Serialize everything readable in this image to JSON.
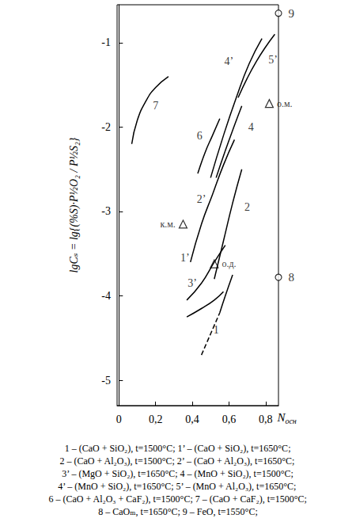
{
  "chart_data": {
    "type": "line",
    "xlabel": "Nосн",
    "ylabel": "lgCₛ = lg{(%S)·P½O₂ / P½S₂}",
    "xlim": [
      -0.01,
      0.87
    ],
    "ylim": [
      -5.3,
      -0.55
    ],
    "xticks": [
      0,
      {
        "value": 0.2,
        "label": "0,2"
      },
      {
        "value": 0.4,
        "label": "0,4"
      },
      {
        "value": 0.6,
        "label": "0,6"
      },
      {
        "value": 0.8,
        "label": "0,8"
      }
    ],
    "yticks": [
      -5,
      -4,
      -3,
      -2,
      -1
    ],
    "grid": false,
    "color": "#000000",
    "series": [
      {
        "line_style": "solid",
        "values": [
          [
            0.07,
            -2.2
          ],
          [
            0.1,
            -1.92
          ],
          [
            0.15,
            -1.68
          ],
          [
            0.2,
            -1.53
          ],
          [
            0.27,
            -1.4
          ]
        ]
      },
      {
        "line_style": "solid",
        "values": [
          [
            0.43,
            -2.55
          ],
          [
            0.47,
            -2.3
          ],
          [
            0.51,
            -2.1
          ],
          [
            0.55,
            -1.9
          ]
        ]
      },
      {
        "line_style": "solid",
        "values": [
          [
            0.5,
            -2.6
          ],
          [
            0.57,
            -2.1
          ],
          [
            0.64,
            -1.65
          ],
          [
            0.71,
            -1.25
          ],
          [
            0.78,
            -0.95
          ]
        ]
      },
      {
        "line_style": "solid",
        "values": [
          [
            0.53,
            -2.6
          ],
          [
            0.58,
            -2.28
          ],
          [
            0.63,
            -1.98
          ],
          [
            0.67,
            -1.75
          ]
        ]
      },
      {
        "line_style": "solid",
        "values": [
          [
            0.65,
            -1.65
          ],
          [
            0.7,
            -1.42
          ],
          [
            0.75,
            -1.22
          ],
          [
            0.8,
            -1.05
          ],
          [
            0.85,
            -0.9
          ]
        ]
      },
      {
        "line_style": "solid",
        "values": [
          [
            0.39,
            -3.6
          ],
          [
            0.45,
            -3.15
          ],
          [
            0.51,
            -2.8
          ],
          [
            0.57,
            -2.45
          ],
          [
            0.63,
            -2.15
          ]
        ]
      },
      {
        "line_style": "solid",
        "values": [
          [
            0.52,
            -3.8
          ],
          [
            0.57,
            -3.35
          ],
          [
            0.62,
            -2.9
          ],
          [
            0.67,
            -2.5
          ]
        ]
      },
      {
        "line_style": "solid",
        "values": [
          [
            0.37,
            -4.05
          ],
          [
            0.45,
            -3.85
          ],
          [
            0.52,
            -3.6
          ],
          [
            0.58,
            -3.4
          ]
        ]
      },
      {
        "line_style": "solid",
        "values": [
          [
            0.37,
            -4.25
          ],
          [
            0.45,
            -4.15
          ],
          [
            0.52,
            -4.05
          ],
          [
            0.57,
            -3.95
          ]
        ]
      },
      {
        "line_style": "dashed",
        "values": [
          [
            0.45,
            -4.7
          ],
          [
            0.5,
            -4.45
          ],
          [
            0.55,
            -4.2
          ]
        ]
      },
      {
        "line_style": "solid",
        "values": [
          [
            0.55,
            -4.2
          ],
          [
            0.58,
            -4.0
          ],
          [
            0.62,
            -3.75
          ]
        ]
      }
    ],
    "annotations": [
      {
        "text": "7",
        "x": 0.2,
        "y": -1.75
      },
      {
        "text": "6",
        "x": 0.44,
        "y": -2.1
      },
      {
        "text": "4’",
        "x": 0.6,
        "y": -1.22
      },
      {
        "text": "4",
        "x": 0.72,
        "y": -2.0
      },
      {
        "text": "5’",
        "x": 0.84,
        "y": -1.2
      },
      {
        "text": "2’",
        "x": 0.45,
        "y": -2.85
      },
      {
        "text": "2",
        "x": 0.7,
        "y": -2.95
      },
      {
        "text": "1’",
        "x": 0.36,
        "y": -3.55
      },
      {
        "text": "3’",
        "x": 0.4,
        "y": -3.85
      },
      {
        "text": "1",
        "x": 0.53,
        "y": -4.4
      }
    ],
    "points": [
      {
        "label": "к.м.",
        "x": 0.35,
        "y": -3.15,
        "marker": "triangle"
      },
      {
        "label": "о.д.",
        "x": 0.52,
        "y": -3.62,
        "marker": "triangle"
      },
      {
        "label": "о.м.",
        "x": 0.82,
        "y": -1.72,
        "marker": "triangle"
      },
      {
        "label": "8",
        "x": 0.87,
        "y": -3.78,
        "marker": "circle"
      },
      {
        "label": "9",
        "x": 0.87,
        "y": -0.65,
        "marker": "circle"
      }
    ],
    "caption": [
      "1 – (CaO + SiO₂), t=1500°C; 1’ – (CaO + SiO₂), t=1650°C;",
      "2 – (CaO + Al₂O₃), t=1500°C; 2’ – (CaO + Al₂O₃), t=1650°C;",
      "3’ – (MgO + SiO₂), t=1650°C; 4 – (MnO + SiO₂), t=1500°C;",
      "4’ – (MnO + SiO₂), t=1650°C; 5’ – (MnO + Al₂O₃), t=1650°C;",
      "6 – (CaO + Al₂O₃ + CaF₂), t=1500°C; 7 – (CaO + CaF₂), t=1500°C;",
      "8 – CaOₘ, t=1650°C; 9 – FeO, t=1550°C;"
    ]
  }
}
